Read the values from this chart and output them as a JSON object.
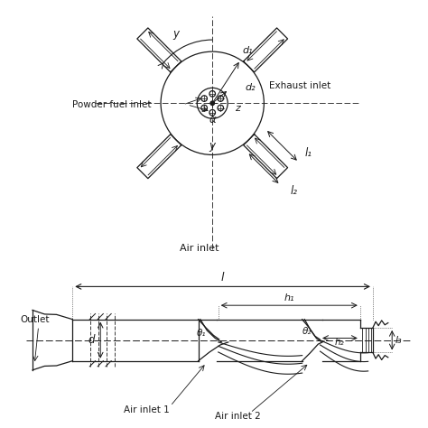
{
  "line_color": "#1a1a1a",
  "labels": {
    "d1": "d₁",
    "d2": "d₂",
    "y_top": "y",
    "z": "z",
    "l1": "l₁",
    "l2": "l₂",
    "alpha": "α",
    "y_bot": "y",
    "exhaust_inlet": "Exhaust inlet",
    "powder_fuel": "Powder fuel inlet",
    "air_inlet_top": "Air inlet",
    "outlet": "Outlet",
    "d": "d",
    "theta1": "θ₁",
    "theta2": "θ₂",
    "h1": "h₁",
    "h2": "h₂",
    "l": "l",
    "l3": "l₃",
    "air_inlet1": "Air inlet 1",
    "air_inlet2": "Air inlet 2"
  }
}
